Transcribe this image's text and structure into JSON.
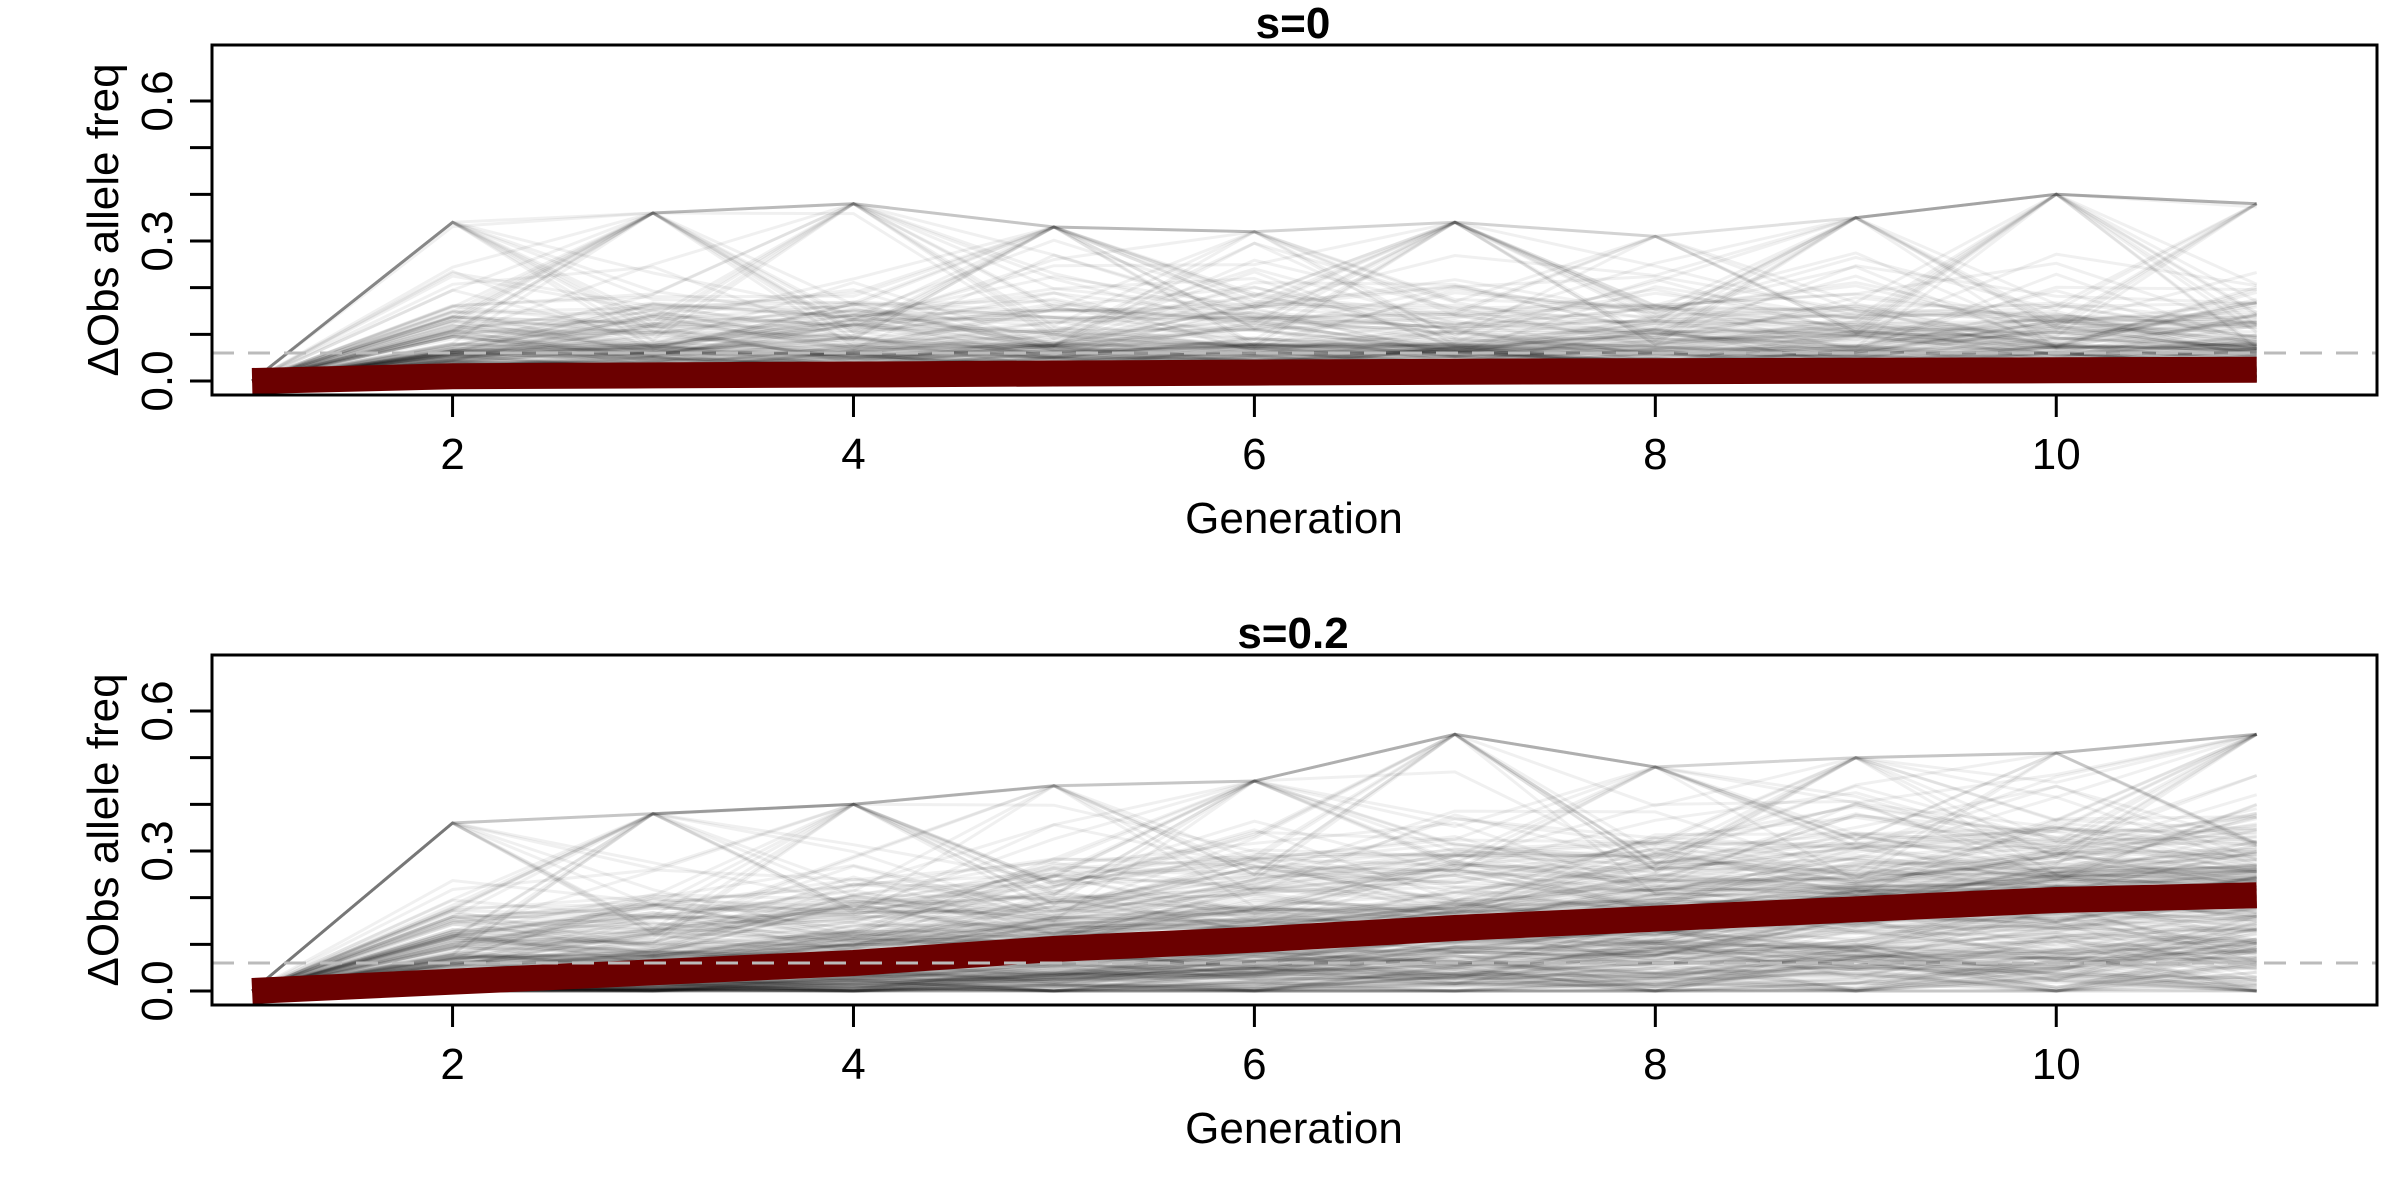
{
  "chart_data": [
    {
      "type": "line",
      "title": "s=0",
      "xlabel": "Generation",
      "ylabel": "ΔObs allele freq",
      "xlim": [
        0.8,
        11.6
      ],
      "ylim": [
        -0.03,
        0.72
      ],
      "x_ticks": [
        2,
        4,
        6,
        8,
        10
      ],
      "x_tick_labels": [
        "2",
        "4",
        "6",
        "8",
        "10"
      ],
      "y_ticks": [
        0.0,
        0.3,
        0.6
      ],
      "y_tick_labels": [
        "0.0",
        "0.3",
        "0.6"
      ],
      "y_minor_ticks": [
        0.1,
        0.2,
        0.4,
        0.5
      ],
      "reference_line": {
        "y": 0.06,
        "style": "dashed",
        "color": "#bbbbbb"
      },
      "x": [
        1,
        2,
        3,
        4,
        5,
        6,
        7,
        8,
        9,
        10,
        11
      ],
      "simulation_color": "#000000",
      "simulation_opacity": 0.06,
      "simulation_count": 300,
      "simulation_quantiles": [
        0.0,
        0.005,
        0.05,
        0.25,
        0.5,
        0.75,
        0.95,
        0.995,
        1.0
      ],
      "simulation_envelope": [
        [
          0,
          0,
          0,
          0,
          0,
          0,
          0,
          0,
          0
        ],
        [
          0,
          0,
          0,
          0.01,
          0.03,
          0.07,
          0.17,
          0.25,
          0.34
        ],
        [
          0,
          0,
          0,
          0.01,
          0.03,
          0.08,
          0.17,
          0.26,
          0.36
        ],
        [
          0,
          0,
          0,
          0.01,
          0.03,
          0.08,
          0.17,
          0.27,
          0.38
        ],
        [
          0,
          0,
          0,
          0.01,
          0.03,
          0.08,
          0.17,
          0.26,
          0.33
        ],
        [
          0,
          0,
          0,
          0.01,
          0.03,
          0.08,
          0.17,
          0.26,
          0.32
        ],
        [
          0,
          0,
          0,
          0.01,
          0.03,
          0.08,
          0.17,
          0.27,
          0.34
        ],
        [
          0,
          0,
          0,
          0.01,
          0.03,
          0.08,
          0.17,
          0.26,
          0.31
        ],
        [
          0,
          0,
          0,
          0.01,
          0.03,
          0.08,
          0.17,
          0.27,
          0.35
        ],
        [
          0,
          0,
          0,
          0.01,
          0.03,
          0.08,
          0.17,
          0.28,
          0.4
        ],
        [
          0,
          0,
          0,
          0.01,
          0.03,
          0.08,
          0.18,
          0.28,
          0.38
        ]
      ],
      "mean_series": {
        "color": "#6b0000",
        "values": [
          0,
          0.01,
          0.012,
          0.014,
          0.016,
          0.018,
          0.02,
          0.021,
          0.022,
          0.023,
          0.024
        ]
      }
    },
    {
      "type": "line",
      "title": "s=0.2",
      "xlabel": "Generation",
      "ylabel": "ΔObs allele freq",
      "xlim": [
        0.8,
        11.6
      ],
      "ylim": [
        -0.03,
        0.72
      ],
      "x_ticks": [
        2,
        4,
        6,
        8,
        10
      ],
      "x_tick_labels": [
        "2",
        "4",
        "6",
        "8",
        "10"
      ],
      "y_ticks": [
        0.0,
        0.3,
        0.6
      ],
      "y_tick_labels": [
        "0.0",
        "0.3",
        "0.6"
      ],
      "y_minor_ticks": [
        0.1,
        0.2,
        0.4,
        0.5
      ],
      "reference_line": {
        "y": 0.06,
        "style": "dashed",
        "color": "#bbbbbb"
      },
      "x": [
        1,
        2,
        3,
        4,
        5,
        6,
        7,
        8,
        9,
        10,
        11
      ],
      "simulation_color": "#000000",
      "simulation_opacity": 0.06,
      "simulation_count": 300,
      "simulation_quantiles": [
        0.0,
        0.005,
        0.05,
        0.25,
        0.5,
        0.75,
        0.95,
        0.995,
        1.0
      ],
      "simulation_envelope": [
        [
          0,
          0,
          0,
          0,
          0,
          0,
          0,
          0,
          0
        ],
        [
          0,
          0,
          0,
          0.01,
          0.03,
          0.08,
          0.18,
          0.27,
          0.36
        ],
        [
          0,
          0,
          0,
          0.02,
          0.05,
          0.1,
          0.21,
          0.3,
          0.38
        ],
        [
          0,
          0,
          0,
          0.03,
          0.07,
          0.13,
          0.24,
          0.33,
          0.4
        ],
        [
          0,
          0,
          0.01,
          0.04,
          0.09,
          0.16,
          0.27,
          0.36,
          0.44
        ],
        [
          0,
          0,
          0.01,
          0.05,
          0.11,
          0.18,
          0.29,
          0.38,
          0.45
        ],
        [
          0,
          0,
          0.01,
          0.06,
          0.13,
          0.2,
          0.31,
          0.4,
          0.55
        ],
        [
          0,
          0,
          0.01,
          0.07,
          0.15,
          0.22,
          0.33,
          0.42,
          0.48
        ],
        [
          0,
          0,
          0.02,
          0.08,
          0.17,
          0.24,
          0.35,
          0.44,
          0.5
        ],
        [
          0,
          0,
          0.02,
          0.09,
          0.19,
          0.26,
          0.37,
          0.46,
          0.51
        ],
        [
          0,
          0,
          0.02,
          0.1,
          0.2,
          0.27,
          0.38,
          0.48,
          0.55
        ]
      ],
      "mean_series": {
        "color": "#6b0000",
        "values": [
          0,
          0.02,
          0.04,
          0.06,
          0.09,
          0.11,
          0.135,
          0.155,
          0.175,
          0.195,
          0.205
        ]
      }
    }
  ]
}
